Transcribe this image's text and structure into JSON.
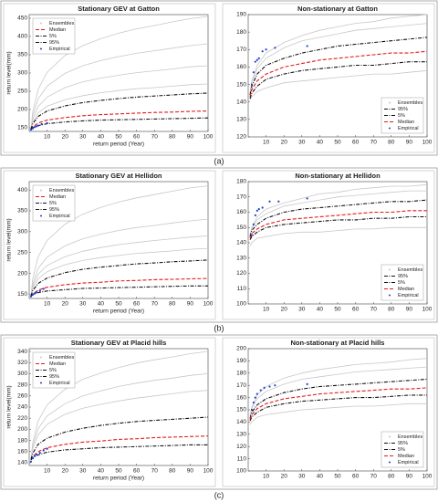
{
  "panels": [
    "(a)",
    "(b)",
    "(c)"
  ],
  "chart_data": [
    {
      "type": "line",
      "title": "Stationary GEV at Gatton",
      "xlabel": "return period (Year)",
      "ylabel": "return level(mm)",
      "legend": "upper left",
      "x": [
        1,
        2,
        5,
        10,
        20,
        30,
        40,
        50,
        60,
        70,
        80,
        90,
        100
      ],
      "xlim": [
        0,
        100
      ],
      "xticks": [
        10,
        20,
        30,
        40,
        50,
        60,
        70,
        80,
        90,
        100
      ],
      "ylim": [
        140,
        460
      ],
      "yticks": [
        150,
        200,
        250,
        300,
        350,
        400,
        450
      ],
      "series": [
        {
          "name": "Ensembles",
          "color": "#c8c8c8",
          "style": "ensemble",
          "values": [
            [
              148,
              194,
              255,
              302,
              348,
              375,
              394,
              409,
              421,
              430,
              440,
              449,
              455
            ],
            [
              148,
              183,
              229,
              264,
              299,
              320,
              334,
              345,
              354,
              361,
              368,
              375,
              380
            ],
            [
              148,
              174,
              208,
              234,
              260,
              276,
              286,
              294,
              301,
              306,
              311,
              317,
              320
            ],
            [
              148,
              166,
              191,
              209,
              227,
              238,
              246,
              252,
              257,
              260,
              264,
              268,
              270
            ]
          ]
        },
        {
          "name": "Median",
          "color": "#e41a1c",
          "style": "dashed",
          "values": [
            145,
            153,
            163,
            171,
            178,
            183,
            186,
            188,
            190,
            192,
            193,
            195,
            196
          ]
        },
        {
          "name": "5%",
          "color": "#111111",
          "style": "dashdot",
          "values": [
            145,
            150,
            156,
            161,
            166,
            169,
            171,
            172,
            173,
            174,
            175,
            176,
            177
          ]
        },
        {
          "name": "95%",
          "color": "#111111",
          "style": "dashdot",
          "values": [
            146,
            161,
            181,
            196,
            210,
            219,
            225,
            230,
            234,
            237,
            240,
            243,
            245
          ]
        },
        {
          "name": "Empirical",
          "color": "#1f3fd1",
          "style": "points",
          "x": [
            1,
            2,
            3,
            4,
            5,
            7,
            10
          ],
          "values": [
            145,
            148,
            152,
            154,
            156,
            160,
            163
          ]
        }
      ]
    },
    {
      "type": "line",
      "title": "Non-stationary at Gatton",
      "legend": "lower right",
      "x": [
        1,
        2,
        5,
        10,
        20,
        30,
        40,
        50,
        60,
        70,
        80,
        90,
        100
      ],
      "xlim": [
        0,
        100
      ],
      "xticks": [
        10,
        20,
        30,
        40,
        50,
        60,
        70,
        80,
        90,
        100
      ],
      "ylim": [
        120,
        190
      ],
      "yticks": [
        120,
        130,
        140,
        150,
        160,
        170,
        180,
        190
      ],
      "series": [
        {
          "name": "Ensembles",
          "color": "#c8c8c8",
          "style": "ensemble",
          "values": [
            [
              145,
              152,
              161,
              168,
              174,
              178,
              181,
              183,
              185,
              186,
              188,
              189,
              190
            ],
            [
              145,
              151,
              159,
              165,
              171,
              175,
              177,
              179,
              181,
              182,
              183,
              184,
              185
            ],
            [
              141,
              143,
              146,
              148,
              151,
              152,
              153,
              154,
              155,
              156,
              156,
              157,
              158
            ]
          ]
        },
        {
          "name": "95%",
          "color": "#111111",
          "style": "dashdot",
          "values": [
            144,
            149,
            156,
            161,
            165,
            168,
            170,
            172,
            173,
            174,
            175,
            176,
            177
          ]
        },
        {
          "name": "5%",
          "color": "#111111",
          "style": "dashdot",
          "values": [
            142,
            145,
            149,
            153,
            156,
            158,
            159,
            160,
            161,
            161,
            162,
            163,
            163
          ]
        },
        {
          "name": "Median",
          "color": "#e41a1c",
          "style": "dashed",
          "values": [
            143,
            147,
            152,
            156,
            160,
            162,
            164,
            165,
            166,
            167,
            168,
            168,
            169
          ]
        },
        {
          "name": "Empirical",
          "color": "#1f3fd1",
          "style": "points",
          "x": [
            2,
            3,
            4,
            5,
            6,
            8,
            10,
            15,
            33
          ],
          "values": [
            150,
            157,
            163,
            164,
            165,
            169,
            170,
            171,
            172
          ]
        }
      ]
    },
    {
      "type": "line",
      "title": "Stationary GEV at Hellidon",
      "xlabel": "return period (Year)",
      "ylabel": "return level(mm)",
      "legend": "upper left",
      "x": [
        1,
        2,
        5,
        10,
        20,
        30,
        40,
        50,
        60,
        70,
        80,
        90,
        100
      ],
      "xlim": [
        0,
        100
      ],
      "xticks": [
        10,
        20,
        30,
        40,
        50,
        60,
        70,
        80,
        90,
        100
      ],
      "ylim": [
        140,
        420
      ],
      "yticks": [
        150,
        200,
        250,
        300,
        350,
        400
      ],
      "series": [
        {
          "name": "Ensembles",
          "color": "#c8c8c8",
          "style": "ensemble",
          "values": [
            [
              148,
              187,
              240,
              279,
              318,
              342,
              358,
              371,
              381,
              389,
              397,
              405,
              410
            ],
            [
              148,
              175,
              212,
              239,
              266,
              283,
              294,
              303,
              310,
              315,
              321,
              326,
              330
            ],
            [
              148,
              169,
              198,
              219,
              240,
              253,
              262,
              269,
              274,
              279,
              283,
              287,
              290
            ],
            [
              148,
              165,
              187,
              204,
              221,
              231,
              238,
              243,
              248,
              251,
              254,
              258,
              260
            ]
          ]
        },
        {
          "name": "Median",
          "color": "#e41a1c",
          "style": "dashed",
          "values": [
            145,
            151,
            160,
            167,
            173,
            177,
            179,
            182,
            183,
            185,
            186,
            187,
            188
          ]
        },
        {
          "name": "5%",
          "color": "#111111",
          "style": "dashdot",
          "values": [
            145,
            149,
            154,
            158,
            161,
            164,
            165,
            166,
            167,
            168,
            169,
            170,
            170
          ]
        },
        {
          "name": "95%",
          "color": "#111111",
          "style": "dashdot",
          "values": [
            146,
            159,
            176,
            189,
            202,
            210,
            215,
            219,
            223,
            225,
            228,
            230,
            232
          ]
        },
        {
          "name": "Empirical",
          "color": "#1f3fd1",
          "style": "points",
          "x": [
            1,
            2,
            3,
            4,
            6,
            8
          ],
          "values": [
            145,
            149,
            152,
            155,
            158,
            163
          ]
        }
      ]
    },
    {
      "type": "line",
      "title": "Non-stationary at Hellidon",
      "legend": "lower right",
      "x": [
        1,
        2,
        5,
        10,
        20,
        30,
        40,
        50,
        60,
        70,
        80,
        90,
        100
      ],
      "xlim": [
        0,
        100
      ],
      "xticks": [
        10,
        20,
        30,
        40,
        50,
        60,
        70,
        80,
        90,
        100
      ],
      "ylim": [
        100,
        180
      ],
      "yticks": [
        100,
        110,
        120,
        130,
        140,
        150,
        160,
        170,
        180
      ],
      "series": [
        {
          "name": "Ensembles",
          "color": "#c8c8c8",
          "style": "ensemble",
          "values": [
            [
              145,
              150,
              157,
              162,
              166,
              169,
              172,
              173,
              175,
              176,
              177,
              177,
              178
            ],
            [
              145,
              149,
              155,
              159,
              164,
              166,
              168,
              170,
              171,
              172,
              173,
              174,
              174
            ],
            [
              138,
              140,
              143,
              144,
              146,
              147,
              147,
              148,
              149,
              149,
              150,
              150,
              150
            ]
          ]
        },
        {
          "name": "95%",
          "color": "#111111",
          "style": "dashdot",
          "values": [
            144,
            148,
            152,
            156,
            160,
            162,
            163,
            164,
            165,
            166,
            167,
            167,
            168
          ]
        },
        {
          "name": "5%",
          "color": "#111111",
          "style": "dashdot",
          "values": [
            142,
            144,
            147,
            150,
            152,
            153,
            154,
            155,
            155,
            156,
            156,
            157,
            157
          ]
        },
        {
          "name": "Median",
          "color": "#e41a1c",
          "style": "dashed",
          "values": [
            143,
            146,
            149,
            152,
            155,
            156,
            157,
            158,
            159,
            160,
            160,
            161,
            161
          ]
        },
        {
          "name": "Empirical",
          "color": "#1f3fd1",
          "style": "points",
          "x": [
            2,
            3,
            4,
            5,
            6,
            8,
            12,
            17,
            33
          ],
          "values": [
            145,
            152,
            158,
            161,
            162,
            163,
            167,
            167,
            169
          ]
        }
      ]
    },
    {
      "type": "line",
      "title": "Stationary GEV at Placid hills",
      "xlabel": "return period (Year)",
      "ylabel": "return level(mm)",
      "legend": "upper left",
      "x": [
        1,
        2,
        5,
        10,
        20,
        30,
        40,
        50,
        60,
        70,
        80,
        90,
        100
      ],
      "xlim": [
        0,
        100
      ],
      "xticks": [
        10,
        20,
        30,
        40,
        50,
        60,
        70,
        80,
        90,
        100
      ],
      "ylim": [
        135,
        345
      ],
      "yticks": [
        140,
        160,
        180,
        200,
        220,
        240,
        260,
        280,
        300,
        320,
        340
      ],
      "series": [
        {
          "name": "Ensembles",
          "color": "#c8c8c8",
          "style": "ensemble",
          "values": [
            [
              147,
              176,
              215,
              244,
              272,
              290,
              301,
              311,
              319,
              325,
              330,
              336,
              340
            ],
            [
              147,
              170,
              201,
              224,
              246,
              260,
              269,
              277,
              283,
              288,
              292,
              297,
              300
            ],
            [
              147,
              165,
              190,
              209,
              227,
              238,
              245,
              251,
              256,
              260,
              264,
              268,
              270
            ]
          ]
        },
        {
          "name": "Median",
          "color": "#e41a1c",
          "style": "dashed",
          "values": [
            145,
            151,
            160,
            167,
            173,
            177,
            179,
            182,
            183,
            185,
            186,
            187,
            188
          ]
        },
        {
          "name": "5%",
          "color": "#111111",
          "style": "dashdot",
          "values": [
            145,
            149,
            154,
            159,
            163,
            165,
            167,
            168,
            169,
            170,
            171,
            172,
            172
          ]
        },
        {
          "name": "95%",
          "color": "#111111",
          "style": "dashdot",
          "values": [
            146,
            157,
            173,
            184,
            195,
            202,
            207,
            211,
            214,
            216,
            218,
            220,
            222
          ]
        },
        {
          "name": "Empirical",
          "color": "#1f3fd1",
          "style": "points",
          "x": [
            1,
            2,
            3,
            4,
            6,
            8,
            10
          ],
          "values": [
            142,
            148,
            152,
            155,
            158,
            162,
            165
          ]
        }
      ]
    },
    {
      "type": "line",
      "title": "Non-stationary at Placid hills",
      "legend": "lower right",
      "x": [
        1,
        2,
        5,
        10,
        20,
        30,
        40,
        50,
        60,
        70,
        80,
        90,
        100
      ],
      "xlim": [
        0,
        100
      ],
      "xticks": [
        10,
        20,
        30,
        40,
        50,
        60,
        70,
        80,
        90,
        100
      ],
      "ylim": [
        100,
        200
      ],
      "yticks": [
        100,
        110,
        120,
        130,
        140,
        150,
        160,
        170,
        180,
        190,
        200
      ],
      "series": [
        {
          "name": "Ensembles",
          "color": "#c8c8c8",
          "style": "ensemble",
          "values": [
            [
              145,
              152,
              162,
              169,
              176,
              180,
              183,
              185,
              187,
              188,
              189,
              191,
              192
            ],
            [
              145,
              151,
              159,
              165,
              171,
              175,
              177,
              179,
              181,
              182,
              183,
              184,
              185
            ],
            [
              138,
              140,
              144,
              146,
              148,
              150,
              151,
              152,
              153,
              153,
              154,
              155,
              155
            ]
          ]
        },
        {
          "name": "95%",
          "color": "#111111",
          "style": "dashdot",
          "values": [
            143,
            148,
            154,
            159,
            164,
            167,
            169,
            170,
            171,
            172,
            173,
            174,
            175
          ]
        },
        {
          "name": "5%",
          "color": "#111111",
          "style": "dashdot",
          "values": [
            141,
            144,
            148,
            152,
            155,
            157,
            158,
            159,
            160,
            160,
            161,
            162,
            162
          ]
        },
        {
          "name": "Median",
          "color": "#e41a1c",
          "style": "dashed",
          "values": [
            142,
            146,
            151,
            155,
            159,
            161,
            163,
            164,
            165,
            166,
            167,
            167,
            168
          ]
        },
        {
          "name": "Empirical",
          "color": "#1f3fd1",
          "style": "points",
          "x": [
            2,
            3,
            4,
            5,
            7,
            9,
            12,
            15,
            33
          ],
          "values": [
            150,
            156,
            160,
            163,
            166,
            168,
            169,
            170,
            171
          ]
        }
      ]
    }
  ]
}
